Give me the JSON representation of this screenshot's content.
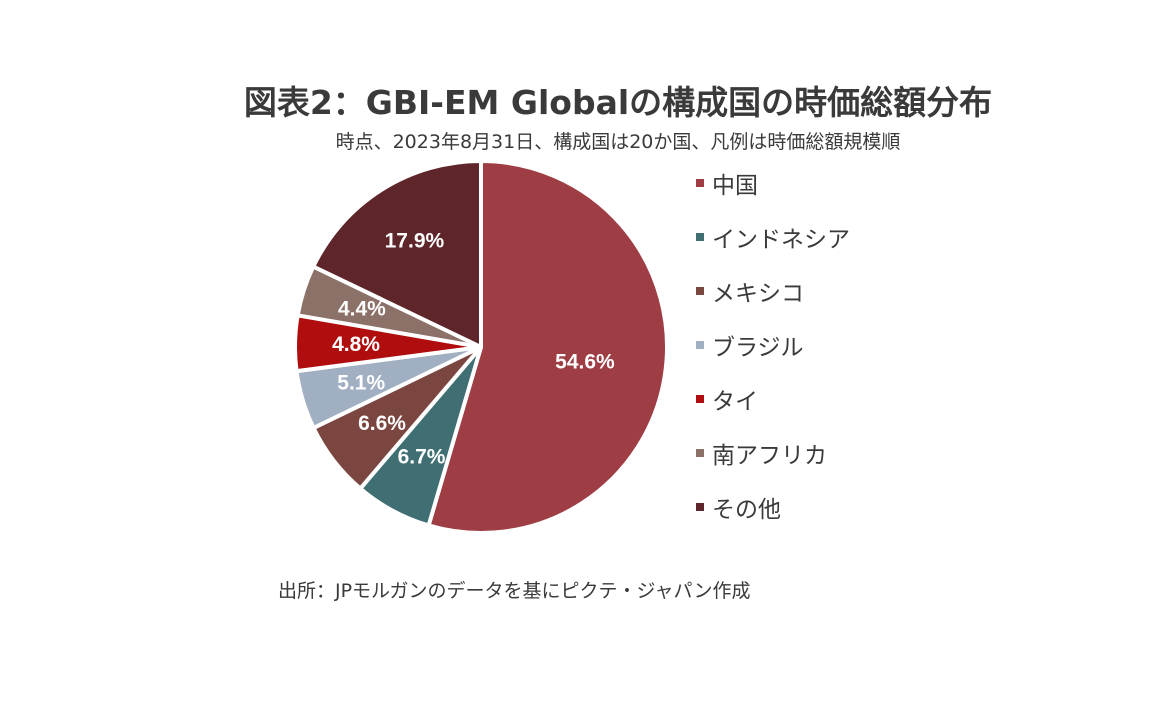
{
  "chart_data": {
    "type": "pie",
    "title": "図表2：GBI-EM Globalの構成国の時価総額分布",
    "subtitle": "時点、2023年8月31日、構成国は20か国、凡例は時価総額規模順",
    "legend_position": "right",
    "categories": [
      "中国",
      "インドネシア",
      "メキシコ",
      "ブラジル",
      "タイ",
      "南アフリカ",
      "その他"
    ],
    "values": [
      54.6,
      6.7,
      6.6,
      5.1,
      4.8,
      4.4,
      17.9
    ],
    "data_labels": [
      "54.6%",
      "6.7%",
      "6.6%",
      "5.1%",
      "4.8%",
      "4.4%",
      "17.9%"
    ],
    "colors": [
      "#9e3d44",
      "#3f6e73",
      "#7b4640",
      "#a0afc2",
      "#b00d0e",
      "#8c7168",
      "#5e252a"
    ],
    "unit": "%",
    "start_angle_deg": 0,
    "direction": "clockwise"
  },
  "source": "出所：JPモルガンのデータを基にピクテ・ジャパン作成"
}
